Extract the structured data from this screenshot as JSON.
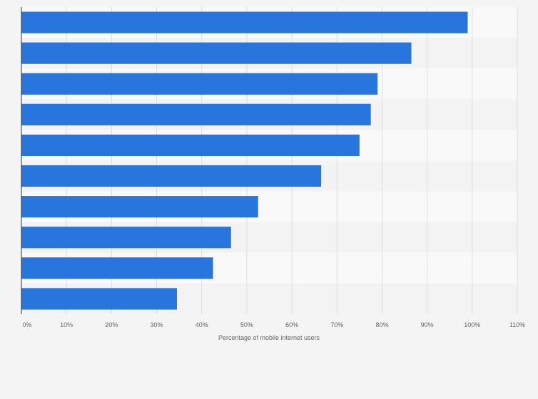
{
  "chart_data": {
    "type": "bar",
    "orientation": "horizontal",
    "categories": [
      "",
      "",
      "",
      "",
      "",
      "",
      "",
      "",
      "",
      ""
    ],
    "values": [
      99,
      86.5,
      79,
      77.5,
      75,
      66.5,
      52.5,
      46.5,
      42.5,
      34.5
    ],
    "title": "",
    "xlabel": "Percentage of mobile internet users",
    "ylabel": "",
    "xlim": [
      0,
      110
    ],
    "x_ticks": [
      "0%",
      "10%",
      "20%",
      "30%",
      "40%",
      "50%",
      "60%",
      "70%",
      "80%",
      "90%",
      "100%",
      "110%"
    ],
    "grid": "vertical",
    "legend": "none",
    "colors": {
      "bar": "#2876dd",
      "band_light": "#f9f9f9",
      "band_dark": "#f3f3f3",
      "grid": "#dddddd",
      "axis": "#333333",
      "background": "#f4f4f4"
    }
  }
}
